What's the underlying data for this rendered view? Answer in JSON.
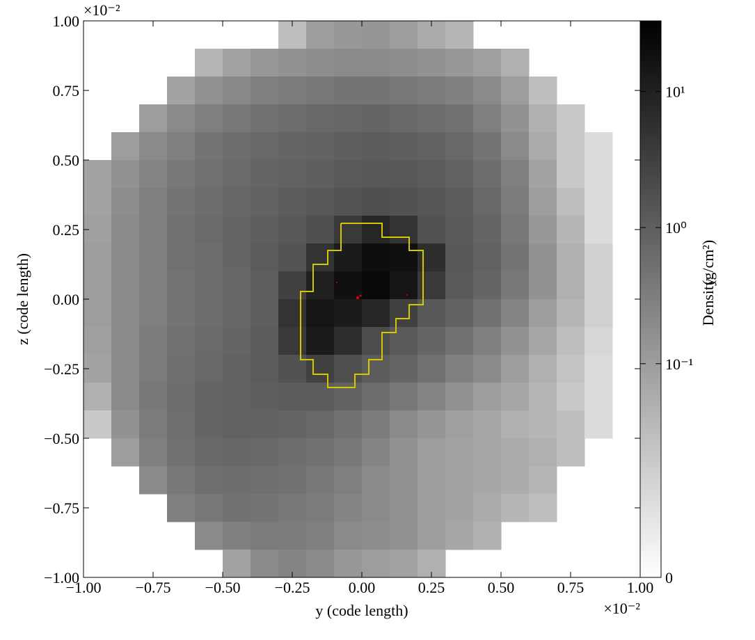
{
  "chart_data": {
    "type": "heatmap",
    "colormap": "gray_r",
    "x_label": "y  (code length)",
    "y_label": "z  (code length)",
    "x_offset_label": "×10⁻²",
    "y_offset_label": "×10⁻²",
    "xlim": [
      -1,
      1
    ],
    "ylim": [
      -1,
      1
    ],
    "xticks": [
      {
        "value": -1,
        "label": "−1.00"
      },
      {
        "value": -0.75,
        "label": "−0.75"
      },
      {
        "value": -0.5,
        "label": "−0.50"
      },
      {
        "value": -0.25,
        "label": "−0.25"
      },
      {
        "value": 0,
        "label": "0.00"
      },
      {
        "value": 0.25,
        "label": "0.25"
      },
      {
        "value": 0.5,
        "label": "0.50"
      },
      {
        "value": 0.75,
        "label": "0.75"
      },
      {
        "value": 1,
        "label": "1.00"
      }
    ],
    "yticks": [
      {
        "value": -1,
        "label": "−1.00"
      },
      {
        "value": -0.75,
        "label": "−0.75"
      },
      {
        "value": -0.5,
        "label": "−0.50"
      },
      {
        "value": -0.25,
        "label": "−0.25"
      },
      {
        "value": 0,
        "label": "0.00"
      },
      {
        "value": 0.25,
        "label": "0.25"
      },
      {
        "value": 0.5,
        "label": "0.50"
      },
      {
        "value": 0.75,
        "label": "0.75"
      },
      {
        "value": 1,
        "label": "1.00"
      }
    ],
    "x": [
      -0.95,
      -0.85,
      -0.75,
      -0.65,
      -0.55,
      -0.45,
      -0.35,
      -0.25,
      -0.15,
      -0.05,
      0.05,
      0.15,
      0.25,
      0.35,
      0.45,
      0.55,
      0.65,
      0.75,
      0.85,
      0.95
    ],
    "y": [
      0.95,
      0.85,
      0.75,
      0.65,
      0.55,
      0.45,
      0.35,
      0.25,
      0.15,
      0.05,
      -0.05,
      -0.15,
      -0.25,
      -0.35,
      -0.45,
      -0.55,
      -0.65,
      -0.75,
      -0.85,
      -0.95
    ],
    "values": [
      [
        null,
        null,
        null,
        null,
        null,
        null,
        null,
        0.03,
        0.1,
        0.12,
        0.13,
        0.1,
        0.06,
        0.04,
        null,
        null,
        null,
        null,
        null,
        null
      ],
      [
        null,
        null,
        null,
        null,
        0.04,
        0.08,
        0.12,
        0.15,
        0.18,
        0.2,
        0.2,
        0.18,
        0.15,
        0.12,
        0.09,
        0.05,
        null,
        null,
        null,
        null
      ],
      [
        null,
        null,
        null,
        0.08,
        0.15,
        0.22,
        0.3,
        0.35,
        0.4,
        0.45,
        0.45,
        0.4,
        0.35,
        0.28,
        0.2,
        0.1,
        0.03,
        null,
        null,
        null
      ],
      [
        null,
        null,
        0.1,
        0.2,
        0.3,
        0.4,
        0.5,
        0.6,
        0.7,
        0.75,
        0.8,
        0.7,
        0.6,
        0.5,
        0.3,
        0.15,
        0.05,
        0.02,
        null,
        null
      ],
      [
        null,
        0.1,
        0.2,
        0.3,
        0.45,
        0.6,
        0.7,
        0.8,
        0.9,
        1.0,
        1.1,
        1.0,
        0.9,
        0.7,
        0.45,
        0.2,
        0.06,
        0.02,
        0.01,
        null
      ],
      [
        0.08,
        0.15,
        0.25,
        0.4,
        0.5,
        0.65,
        0.8,
        0.9,
        1.0,
        1.2,
        1.3,
        1.3,
        1.1,
        0.9,
        0.6,
        0.3,
        0.08,
        0.02,
        0.01,
        null
      ],
      [
        0.08,
        0.18,
        0.3,
        0.45,
        0.6,
        0.75,
        0.9,
        1.1,
        1.3,
        1.5,
        1.7,
        1.6,
        1.4,
        1.1,
        0.7,
        0.35,
        0.1,
        0.03,
        0.01,
        null
      ],
      [
        0.09,
        0.2,
        0.3,
        0.5,
        0.65,
        0.8,
        1.0,
        1.3,
        1.7,
        4,
        8,
        5,
        1.6,
        1.2,
        0.8,
        0.4,
        0.12,
        0.04,
        0.01,
        null
      ],
      [
        0.1,
        0.2,
        0.3,
        0.5,
        0.6,
        0.8,
        1.1,
        1.5,
        5,
        12,
        20,
        18,
        6,
        1.3,
        0.9,
        0.45,
        0.15,
        0.05,
        0.015,
        null
      ],
      [
        0.1,
        0.2,
        0.3,
        0.45,
        0.6,
        0.75,
        1.0,
        3,
        10,
        18,
        25,
        15,
        4,
        1.2,
        0.8,
        0.4,
        0.15,
        0.05,
        0.015,
        null
      ],
      [
        0.1,
        0.2,
        0.3,
        0.45,
        0.6,
        0.75,
        1.0,
        5,
        15,
        12,
        8,
        3,
        1.3,
        0.9,
        0.5,
        0.25,
        0.1,
        0.04,
        0.015,
        null
      ],
      [
        0.09,
        0.2,
        0.35,
        0.5,
        0.65,
        0.8,
        1.1,
        4,
        12,
        6,
        2,
        1.2,
        0.8,
        0.5,
        0.3,
        0.15,
        0.07,
        0.03,
        0.012,
        null
      ],
      [
        0.08,
        0.2,
        0.35,
        0.55,
        0.7,
        0.9,
        1.1,
        1.6,
        3,
        1.8,
        1.1,
        0.8,
        0.5,
        0.3,
        0.2,
        0.1,
        0.05,
        0.025,
        0.01,
        null
      ],
      [
        0.05,
        0.2,
        0.4,
        0.6,
        0.8,
        0.9,
        1.0,
        1.1,
        1.1,
        0.9,
        0.6,
        0.4,
        0.25,
        0.15,
        0.1,
        0.07,
        0.04,
        0.02,
        0.01,
        null
      ],
      [
        0.02,
        0.15,
        0.35,
        0.55,
        0.8,
        0.9,
        0.9,
        0.8,
        0.7,
        0.5,
        0.35,
        0.2,
        0.13,
        0.09,
        0.07,
        0.05,
        0.04,
        0.03,
        0.01,
        null
      ],
      [
        null,
        0.1,
        0.3,
        0.5,
        0.7,
        0.75,
        0.7,
        0.6,
        0.5,
        0.4,
        0.25,
        0.15,
        0.1,
        0.08,
        0.07,
        0.06,
        0.05,
        0.03,
        null,
        null
      ],
      [
        null,
        null,
        0.2,
        0.4,
        0.55,
        0.6,
        0.55,
        0.5,
        0.4,
        0.3,
        0.2,
        0.15,
        0.1,
        0.08,
        0.07,
        0.06,
        0.04,
        null,
        null,
        null
      ],
      [
        null,
        null,
        null,
        0.3,
        0.4,
        0.5,
        0.45,
        0.4,
        0.35,
        0.25,
        0.2,
        0.15,
        0.1,
        0.08,
        0.06,
        0.04,
        0.03,
        null,
        null,
        null
      ],
      [
        null,
        null,
        null,
        null,
        0.2,
        0.3,
        0.35,
        0.35,
        0.3,
        0.2,
        0.18,
        0.15,
        0.1,
        0.07,
        0.05,
        null,
        null,
        null,
        null,
        null
      ],
      [
        null,
        null,
        null,
        null,
        null,
        0.08,
        0.2,
        0.25,
        0.2,
        0.12,
        0.1,
        0.08,
        0.05,
        null,
        null,
        null,
        null,
        null,
        null,
        null
      ]
    ],
    "colorbar": {
      "label": "Density",
      "unit": "(g/cm²)",
      "scale": "symlog",
      "linthresh": 0.01,
      "lim": [
        0,
        33
      ],
      "ticks": [
        0,
        {
          "value": 0.1,
          "label": "10⁻¹"
        },
        {
          "value": 1,
          "label": "10⁰"
        },
        {
          "value": 10,
          "label": "10¹"
        }
      ]
    }
  }
}
